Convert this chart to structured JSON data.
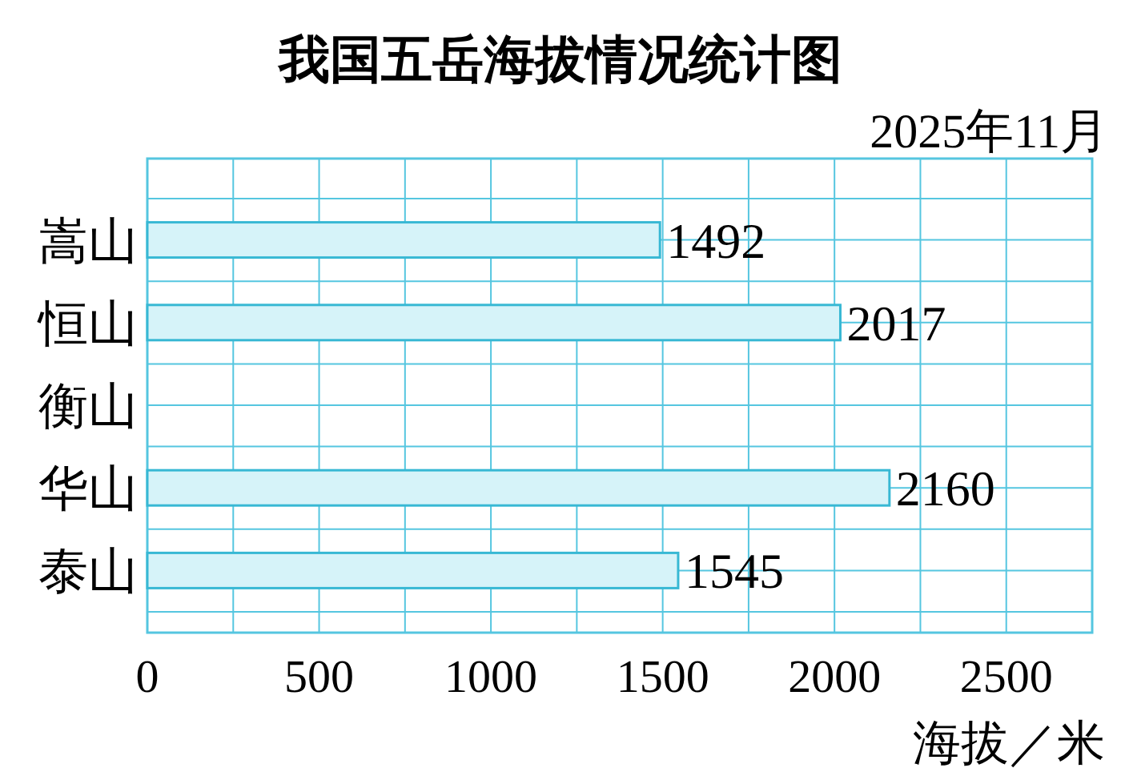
{
  "chart_data": {
    "type": "bar",
    "orientation": "horizontal",
    "title": "我国五岳海拔情况统计图",
    "subtitle": "2025年11月",
    "xlabel": "海拔／米",
    "categories": [
      "嵩山",
      "恒山",
      "衡山",
      "华山",
      "泰山"
    ],
    "values": [
      1492,
      2017,
      null,
      2160,
      1545
    ],
    "color": "#d6f3f9",
    "data_labels": true,
    "grid": true,
    "xlim": [
      0,
      2750
    ],
    "xticks": [
      0,
      {
        "value": 250,
        "label": null
      },
      500,
      {
        "value": 750,
        "label": null
      },
      1000,
      {
        "value": 1250,
        "label": null
      },
      1500,
      {
        "value": 1750,
        "label": null
      },
      2000,
      {
        "value": 2250,
        "label": null
      },
      2500,
      {
        "value": 2750,
        "label": null
      }
    ]
  }
}
